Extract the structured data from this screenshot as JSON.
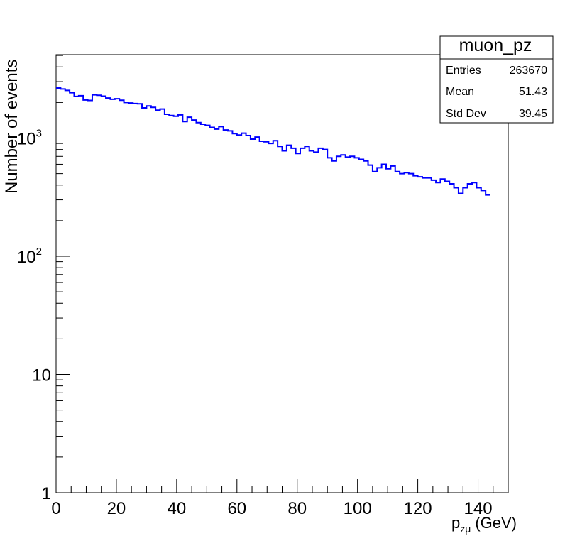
{
  "chart_data": {
    "type": "histogram",
    "x_scale": "linear",
    "y_scale": "log",
    "xlim": [
      0,
      150
    ],
    "ylim": [
      1,
      5000
    ],
    "grid": false,
    "xlabel": "(GeV)",
    "xlabel_symbol": "p",
    "xlabel_subscript": "zμ",
    "ylabel": "Number of events",
    "x_ticks": [
      "0",
      "20",
      "40",
      "60",
      "80",
      "100",
      "120",
      "140"
    ],
    "y_ticks": [
      {
        "base": "1",
        "exp": ""
      },
      {
        "base": "10",
        "exp": ""
      },
      {
        "base": "10",
        "exp": "2"
      },
      {
        "base": "10",
        "exp": "3"
      }
    ],
    "line_color": "#0000ff",
    "bin_width": 1.5,
    "bin_start": 0,
    "values": [
      2650,
      2600,
      2530,
      2420,
      2250,
      2280,
      2100,
      2080,
      2320,
      2300,
      2260,
      2180,
      2130,
      2150,
      2090,
      2000,
      1980,
      1960,
      1950,
      1800,
      1870,
      1820,
      1720,
      1760,
      1590,
      1550,
      1530,
      1570,
      1380,
      1500,
      1420,
      1350,
      1310,
      1280,
      1230,
      1190,
      1250,
      1170,
      1150,
      1090,
      1060,
      1100,
      1050,
      980,
      1020,
      940,
      930,
      900,
      950,
      850,
      780,
      870,
      820,
      740,
      820,
      850,
      780,
      760,
      820,
      800,
      680,
      640,
      700,
      720,
      690,
      700,
      680,
      660,
      640,
      590,
      520,
      560,
      600,
      550,
      580,
      520,
      500,
      510,
      500,
      480,
      470,
      460,
      460,
      440,
      420,
      450,
      430,
      410,
      380,
      340,
      380,
      410,
      420,
      380,
      360,
      330
    ]
  },
  "stats_box": {
    "title": "muon_pz",
    "rows": [
      {
        "label": "Entries",
        "value": "263670"
      },
      {
        "label": "Mean",
        "value": "51.43"
      },
      {
        "label": "Std Dev",
        "value": "39.45"
      }
    ]
  }
}
